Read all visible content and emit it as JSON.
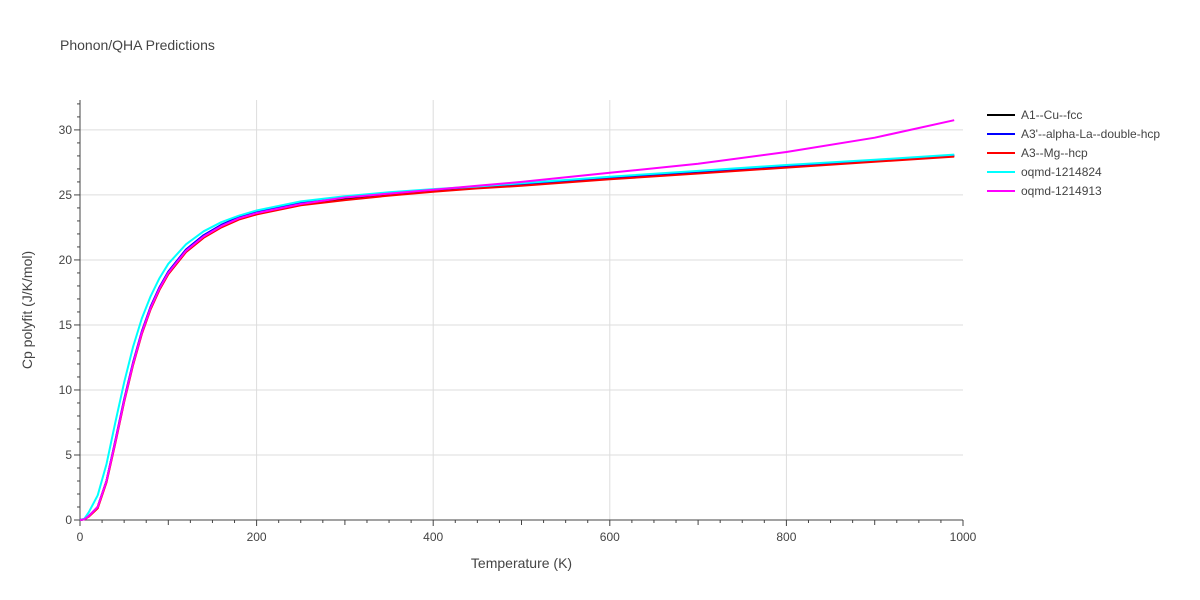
{
  "chart_data": {
    "type": "line",
    "title": "Phonon/QHA Predictions",
    "xlabel": "Temperature (K)",
    "ylabel": "Cp polyfit (J/K/mol)",
    "xlim": [
      0,
      1000
    ],
    "ylim": [
      0,
      32.3
    ],
    "xticks": [
      0,
      200,
      400,
      600,
      800,
      1000
    ],
    "yticks": [
      0,
      5,
      10,
      15,
      20,
      25,
      30
    ],
    "grid": true,
    "legend_position": "top-right",
    "x": [
      0,
      5,
      10,
      20,
      30,
      40,
      50,
      60,
      70,
      80,
      90,
      100,
      120,
      140,
      160,
      180,
      200,
      250,
      300,
      350,
      400,
      450,
      500,
      600,
      700,
      800,
      900,
      990
    ],
    "series": [
      {
        "name": "A1--Cu--fcc",
        "color": "#000000",
        "values": [
          0,
          0.05,
          0.3,
          1.0,
          3.0,
          6.0,
          9.2,
          12.0,
          14.4,
          16.3,
          17.8,
          19.0,
          20.7,
          21.8,
          22.6,
          23.2,
          23.6,
          24.3,
          24.7,
          25.0,
          25.3,
          25.55,
          25.75,
          26.25,
          26.7,
          27.15,
          27.6,
          28.0
        ]
      },
      {
        "name": "A3'--alpha-La--double-hcp",
        "color": "#0000ff",
        "values": [
          0,
          0.05,
          0.3,
          1.0,
          3.0,
          6.1,
          9.3,
          12.1,
          14.5,
          16.4,
          17.9,
          19.1,
          20.8,
          21.9,
          22.7,
          23.3,
          23.7,
          24.4,
          24.8,
          25.1,
          25.4,
          25.6,
          25.85,
          26.35,
          26.8,
          27.25,
          27.65,
          28.05
        ]
      },
      {
        "name": "A3--Mg--hcp",
        "color": "#ff0000",
        "values": [
          0,
          0.05,
          0.25,
          0.9,
          2.9,
          5.9,
          9.1,
          11.9,
          14.3,
          16.2,
          17.7,
          18.9,
          20.6,
          21.7,
          22.5,
          23.1,
          23.5,
          24.2,
          24.6,
          24.95,
          25.25,
          25.5,
          25.7,
          26.2,
          26.65,
          27.1,
          27.55,
          27.95
        ]
      },
      {
        "name": "oqmd-1214824",
        "color": "#00ffff",
        "values": [
          0,
          0.1,
          0.6,
          1.9,
          4.3,
          7.5,
          10.6,
          13.3,
          15.5,
          17.2,
          18.6,
          19.7,
          21.2,
          22.2,
          22.9,
          23.4,
          23.8,
          24.5,
          24.9,
          25.2,
          25.45,
          25.65,
          25.9,
          26.4,
          26.85,
          27.3,
          27.7,
          28.1
        ]
      },
      {
        "name": "oqmd-1214913",
        "color": "#ff00ff",
        "values": [
          0,
          0.05,
          0.3,
          1.0,
          3.0,
          6.0,
          9.2,
          12.0,
          14.4,
          16.3,
          17.8,
          19.0,
          20.7,
          21.8,
          22.6,
          23.2,
          23.6,
          24.3,
          24.8,
          25.1,
          25.4,
          25.7,
          26.0,
          26.7,
          27.4,
          28.3,
          29.4,
          30.75
        ]
      }
    ]
  }
}
